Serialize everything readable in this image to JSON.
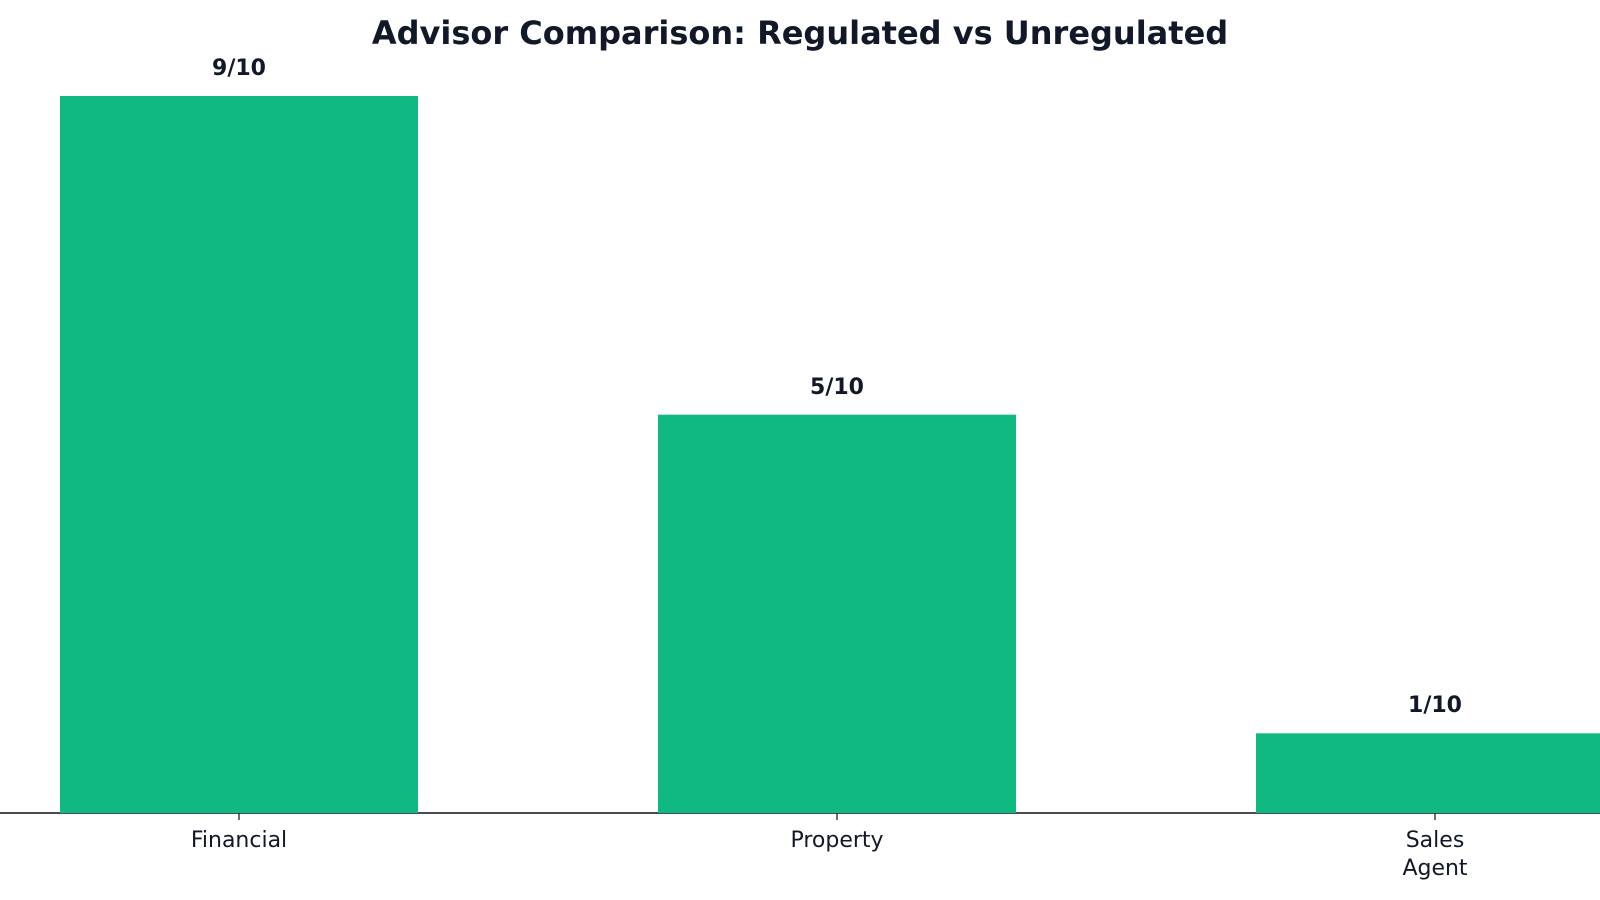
{
  "chart_data": {
    "type": "bar",
    "title": "Advisor Comparison: Regulated vs Unregulated",
    "categories": [
      "Financial",
      "Property",
      "Sales\nAgent"
    ],
    "values": [
      9,
      5,
      1
    ],
    "value_labels": [
      "9/10",
      "5/10",
      "1/10"
    ],
    "color": "#10b981"
  }
}
